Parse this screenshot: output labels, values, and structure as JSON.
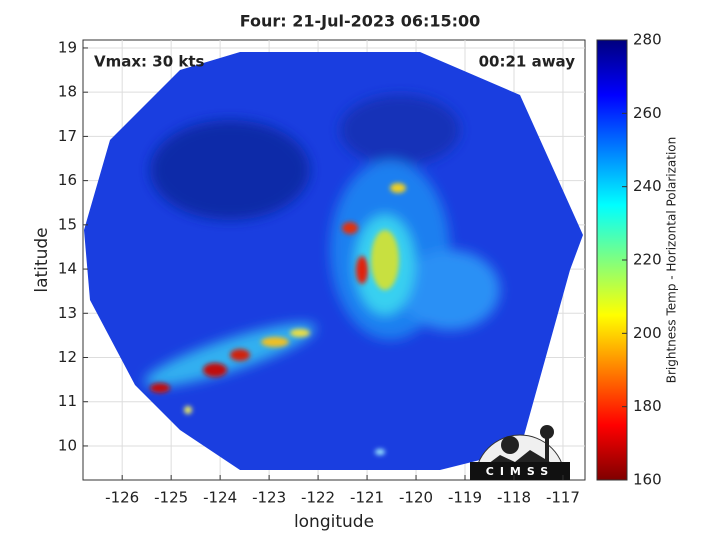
{
  "chart_data": {
    "type": "map",
    "title": "Four: 21-Jul-2023 06:15:00",
    "xlabel": "longitude",
    "ylabel": "latitude",
    "xlim": [
      -126.8,
      -116.55
    ],
    "ylim": [
      9.23,
      19.18
    ],
    "xticks": [
      -126,
      -125,
      -124,
      -123,
      -122,
      -121,
      -120,
      -119,
      -118,
      -117
    ],
    "yticks": [
      10,
      11,
      12,
      13,
      14,
      15,
      16,
      17,
      18,
      19
    ],
    "grid": true,
    "annotations": [
      "Vmax: 30 kts",
      "00:21 away"
    ],
    "colorbar": {
      "label": "Brightness Temp - Horizontal Polarization",
      "lim": [
        160,
        280
      ],
      "ticks": [
        160,
        180,
        200,
        220,
        240,
        260,
        280
      ]
    },
    "logo_text": "CIMSS"
  }
}
